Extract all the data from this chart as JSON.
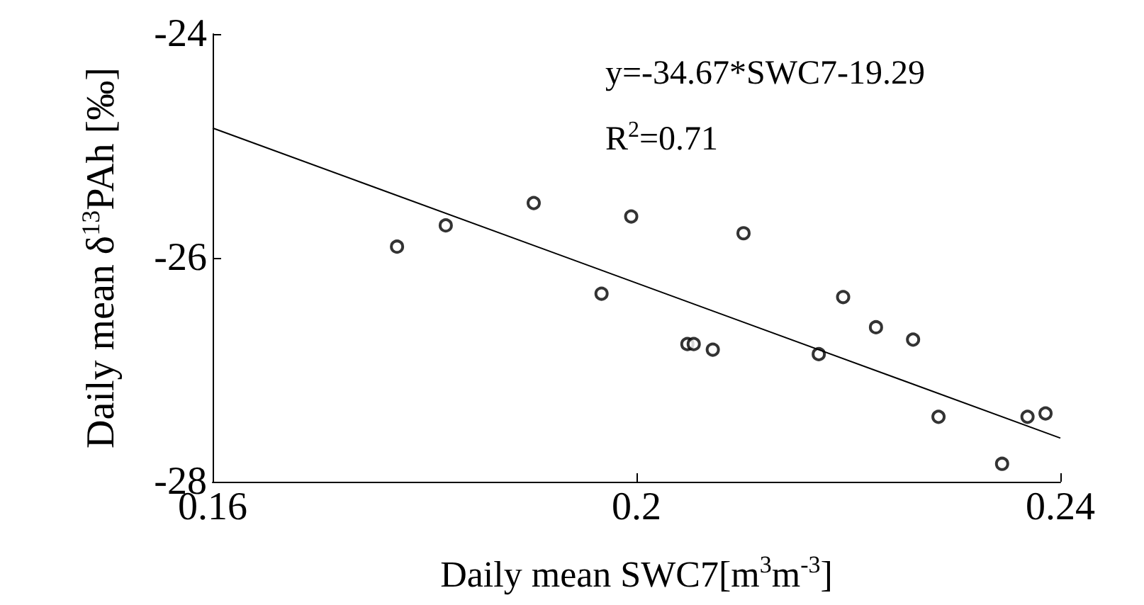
{
  "chart_data": {
    "type": "scatter",
    "xlabel": "Daily mean SWC7[m$^{3}$m$^{-3}$]",
    "ylabel": "Daily mean δ$^{13}$PAh [‰]",
    "annotations": [
      "y=-34.67*SWC7-19.29",
      "R$^{2}$=0.71"
    ],
    "x": [
      0.1774,
      0.182,
      0.1903,
      0.1967,
      0.1995,
      0.2101,
      0.2048,
      0.2054,
      0.2072,
      0.2172,
      0.2195,
      0.2226,
      0.2261,
      0.2285,
      0.2345,
      0.2369,
      0.2386
    ],
    "series": [
      {
        "color": "#000000",
        "marker": "circle",
        "values": [
          -25.9,
          -25.71,
          -25.51,
          -26.32,
          -25.63,
          -25.78,
          -26.77,
          -26.77,
          -26.82,
          -26.86,
          -26.35,
          -26.62,
          -26.73,
          -27.42,
          -27.84,
          -27.42,
          -27.39
        ]
      },
      {
        "type": "line",
        "color": "#000000",
        "marker": "none",
        "line_style": "solid",
        "x": [
          0.16,
          0.24
        ],
        "values": [
          -24.84,
          -27.61
        ]
      }
    ],
    "xlim": [
      0.16,
      0.24
    ],
    "ylim": [
      -28,
      -24
    ],
    "xticks": [
      0.16,
      0.2,
      0.24
    ],
    "yticks": [
      -28,
      -26,
      -24
    ],
    "grid": false
  }
}
